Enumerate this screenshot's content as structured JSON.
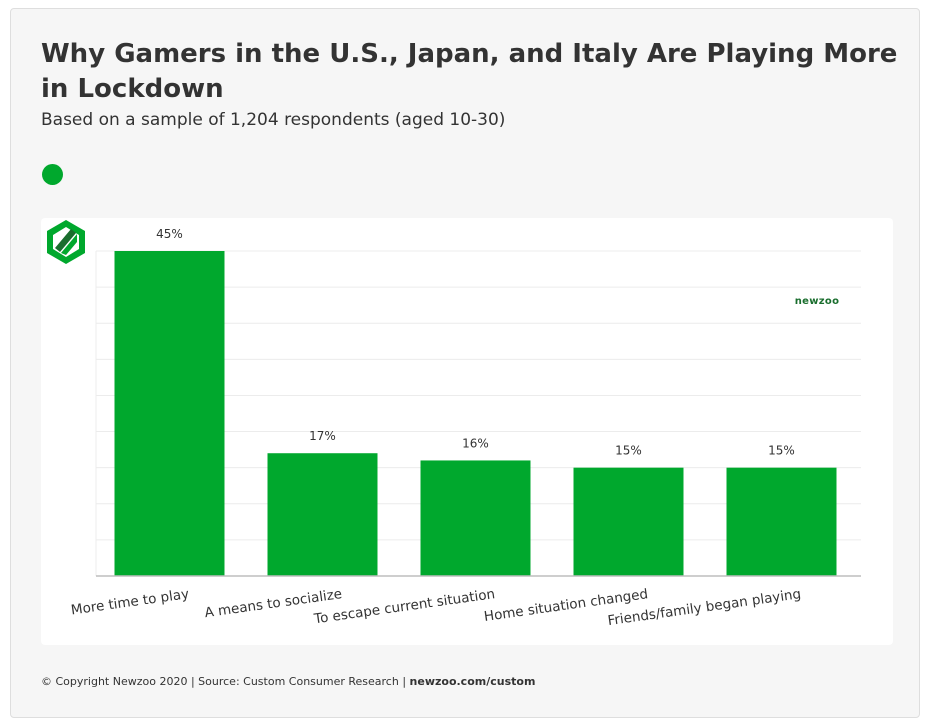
{
  "header": {
    "title": "Why Gamers in the U.S., Japan, and Italy Are Playing More in Lockdown",
    "subtitle": "Based on a sample of 1,204 respondents (aged 10-30)"
  },
  "logo": {
    "text": "newzoo",
    "icon": "newzoo-logo-icon"
  },
  "footer": {
    "copyright": "© Copyright Newzoo 2020 | Source: Custom Consumer Research | ",
    "link": "newzoo.com/custom"
  },
  "colors": {
    "bar": "#00a82d",
    "logo_green": "#00a82d",
    "logo_dark": "#1a6e2e",
    "grid": "#ececec",
    "axis": "#bdbdbd"
  },
  "chart_data": {
    "type": "bar",
    "categories": [
      "More time to play",
      "A means to socialize",
      "To escape current situation",
      "Home situation changed",
      "Friends/family began playing"
    ],
    "values": [
      45,
      17,
      16,
      15,
      15
    ],
    "value_labels": [
      "45%",
      "17%",
      "16%",
      "15%",
      "15%"
    ],
    "unit": "%",
    "ylim": [
      0,
      45
    ],
    "grid": true,
    "legend": "top-left"
  }
}
